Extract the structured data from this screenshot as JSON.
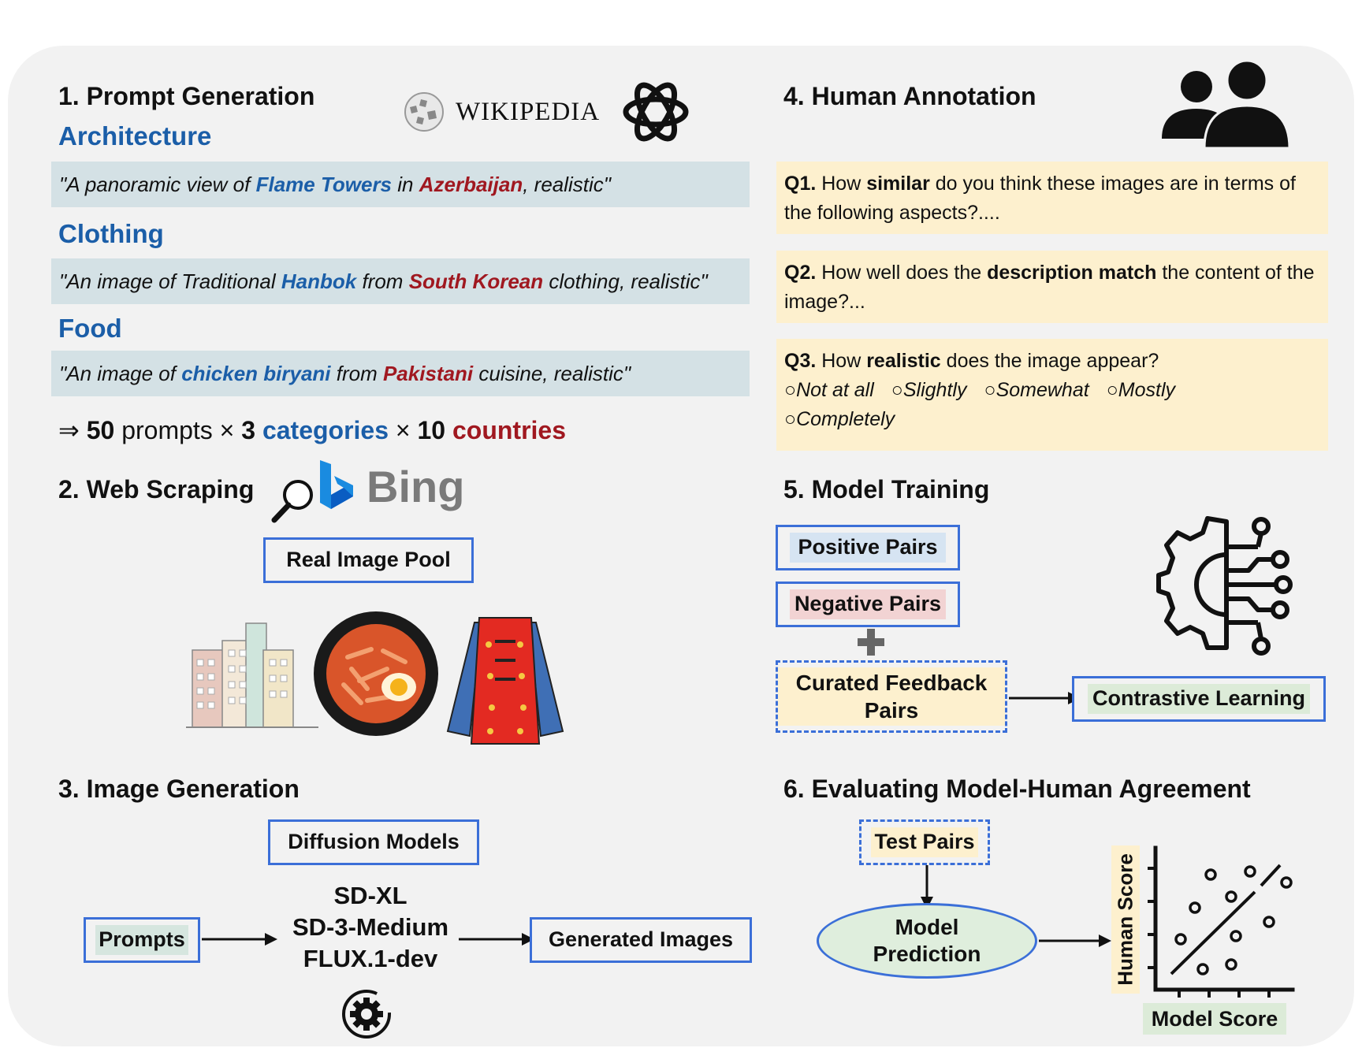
{
  "sections": {
    "prompt_generation": "1. Prompt Generation",
    "web_scraping": "2. Web Scraping",
    "image_generation": "3. Image Generation",
    "human_annotation": "4. Human Annotation",
    "model_training": "5. Model Training",
    "evaluation": "6. Evaluating Model-Human Agreement"
  },
  "logos": {
    "wikipedia": "WIKIPEDIA",
    "bing": "Bing"
  },
  "categories": {
    "architecture": {
      "label": "Architecture",
      "prompt_pre": "\"A panoramic view of ",
      "subject": "Flame Towers",
      "mid": " in ",
      "country": "Azerbaijan",
      "post": ", realistic\""
    },
    "clothing": {
      "label": "Clothing",
      "prompt_pre": "\"An image of Traditional ",
      "subject": "Hanbok",
      "mid": " from ",
      "country": "South Korean",
      "post": " clothing, realistic\""
    },
    "food": {
      "label": "Food",
      "prompt_pre": "\"An image of ",
      "subject": "chicken biryani",
      "mid": " from ",
      "country": "Pakistani",
      "post": " cuisine, realistic\""
    }
  },
  "formula": {
    "arrow": "⇒",
    "n_prompts": "50",
    "prompts_word": "prompts",
    "times": "×",
    "n_categories": "3",
    "categories_word": "categories",
    "n_countries": "10",
    "countries_word": "countries"
  },
  "web_scraping": {
    "pool": "Real Image Pool"
  },
  "image_generation": {
    "diffusion": "Diffusion Models",
    "prompts": "Prompts",
    "models": [
      "SD-XL",
      "SD-3-Medium",
      "FLUX.1-dev"
    ],
    "output": "Generated Images"
  },
  "human_annotation": {
    "q1": {
      "num": "Q1.",
      "a": " How ",
      "b": "similar",
      "c": " do you think these images are  in terms of the following aspects?...."
    },
    "q2": {
      "num": "Q2.",
      "a": " How well does the ",
      "b": "description match",
      "c": " the content of the image?..."
    },
    "q3": {
      "num": "Q3.",
      "a": " How ",
      "b": "realistic",
      "c": " does the image appear?"
    },
    "options": [
      "○Not at all",
      "○Slightly",
      "○Somewhat",
      "○Mostly",
      "○Completely"
    ]
  },
  "model_training": {
    "positive": "Positive Pairs",
    "negative": "Negative Pairs",
    "curated": "Curated Feedback Pairs",
    "contrastive": "Contrastive Learning"
  },
  "evaluation": {
    "test_pairs": "Test Pairs",
    "model_prediction": "Model Prediction",
    "y_label": "Human Score",
    "x_label": "Model Score"
  },
  "colors": {
    "blue": "#1b5ea8",
    "red": "#a01820",
    "box_border": "#3b6fd8",
    "question_bg": "#fdf0ce",
    "prompt_bg": "#d4e1e5",
    "prediction_bg": "#dfeedd"
  }
}
